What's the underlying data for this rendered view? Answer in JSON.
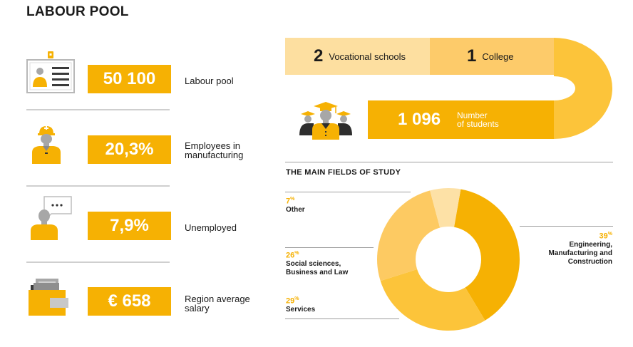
{
  "title": "LABOUR POOL",
  "stats": [
    {
      "value": "50 100",
      "label": "Labour pool",
      "icon": "id-card-icon"
    },
    {
      "value": "20,3%",
      "label": "Employees in manufacturing",
      "icon": "worker-helmet-icon"
    },
    {
      "value": "7,9%",
      "label": "Unemployed",
      "icon": "person-speech-bubble-icon"
    },
    {
      "value": "€ 658",
      "label": "Region average salary",
      "icon": "wallet-icon"
    }
  ],
  "education": {
    "vocational_count": "2",
    "vocational_label": "Vocational schools",
    "college_count": "1",
    "college_label": "College",
    "students_count": "1 096",
    "students_label_1": "Number",
    "students_label_2": "of students",
    "icon": "graduates-icon"
  },
  "fields_title": "THE MAIN FIELDS OF STUDY",
  "fields": [
    {
      "pct": "7",
      "name_1": "Other",
      "name_2": "",
      "name_3": "",
      "color": "#fde1a6"
    },
    {
      "pct": "26",
      "name_1": "Social sciences,",
      "name_2": "Business and Law",
      "name_3": "",
      "color": "#fdca62"
    },
    {
      "pct": "29",
      "name_1": "Services",
      "name_2": "",
      "name_3": "",
      "color": "#fcc43a"
    },
    {
      "pct": "39",
      "name_1": "Engineering,",
      "name_2": "Manufacturing and",
      "name_3": "Construction",
      "color": "#f6b103"
    }
  ],
  "colors": {
    "accent": "#f6b103",
    "rule": "#cfcfcf"
  }
}
